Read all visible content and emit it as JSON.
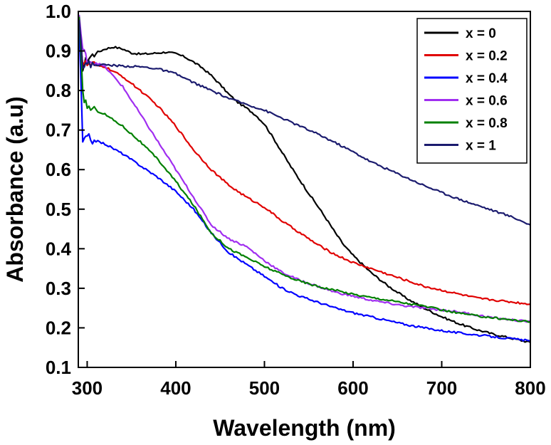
{
  "chart_data": {
    "type": "line",
    "title": "",
    "xlabel": "Wavelength (nm)",
    "ylabel": "Absorbance (a.u)",
    "xlim": [
      290,
      800
    ],
    "ylim": [
      0.1,
      1.0
    ],
    "xticks": [
      300,
      400,
      500,
      600,
      700,
      800
    ],
    "xtick_labels": [
      "300",
      "400",
      "500",
      "600",
      "700",
      "800"
    ],
    "yticks": [
      0.1,
      0.2,
      0.3,
      0.4,
      0.5,
      0.6,
      0.7,
      0.8,
      0.9,
      1.0
    ],
    "ytick_labels": [
      "0.1",
      "0.2",
      "0.3",
      "0.4",
      "0.5",
      "0.6",
      "0.7",
      "0.8",
      "0.9",
      "1.0"
    ],
    "grid": false,
    "legend_position": "top-right",
    "series": [
      {
        "name": "x = 0",
        "color": "#000000",
        "x": [
          291,
          295,
          300,
          310,
          320,
          330,
          340,
          350,
          360,
          370,
          380,
          390,
          400,
          410,
          420,
          430,
          440,
          450,
          460,
          470,
          480,
          490,
          500,
          510,
          520,
          530,
          540,
          550,
          560,
          570,
          580,
          590,
          600,
          620,
          640,
          660,
          680,
          700,
          720,
          740,
          760,
          780,
          800
        ],
        "y": [
          0.97,
          0.86,
          0.88,
          0.895,
          0.905,
          0.91,
          0.905,
          0.895,
          0.892,
          0.893,
          0.895,
          0.897,
          0.893,
          0.885,
          0.872,
          0.857,
          0.838,
          0.815,
          0.79,
          0.77,
          0.755,
          0.738,
          0.715,
          0.68,
          0.643,
          0.607,
          0.573,
          0.54,
          0.508,
          0.475,
          0.44,
          0.408,
          0.383,
          0.34,
          0.305,
          0.275,
          0.25,
          0.228,
          0.21,
          0.195,
          0.183,
          0.173,
          0.163
        ]
      },
      {
        "name": "x = 0.2",
        "color": "#e00000",
        "x": [
          291,
          295,
          300,
          320,
          340,
          360,
          380,
          400,
          420,
          440,
          460,
          480,
          500,
          520,
          540,
          560,
          580,
          600,
          620,
          640,
          660,
          680,
          700,
          720,
          740,
          760,
          780,
          800
        ],
        "y": [
          0.96,
          0.87,
          0.865,
          0.86,
          0.835,
          0.8,
          0.76,
          0.71,
          0.65,
          0.6,
          0.56,
          0.53,
          0.505,
          0.47,
          0.44,
          0.41,
          0.385,
          0.365,
          0.35,
          0.335,
          0.32,
          0.305,
          0.295,
          0.285,
          0.275,
          0.27,
          0.265,
          0.26
        ]
      },
      {
        "name": "x = 0.4",
        "color": "#0000ff",
        "x": [
          291,
          295,
          300,
          320,
          340,
          360,
          380,
          400,
          420,
          440,
          460,
          480,
          500,
          520,
          540,
          560,
          580,
          600,
          620,
          640,
          660,
          680,
          700,
          720,
          740,
          760,
          780,
          800
        ],
        "y": [
          0.96,
          0.67,
          0.68,
          0.665,
          0.64,
          0.61,
          0.58,
          0.545,
          0.5,
          0.44,
          0.39,
          0.36,
          0.33,
          0.3,
          0.28,
          0.265,
          0.25,
          0.238,
          0.228,
          0.218,
          0.208,
          0.2,
          0.193,
          0.187,
          0.182,
          0.177,
          0.172,
          0.167
        ]
      },
      {
        "name": "x = 0.6",
        "color": "#a02ef0",
        "x": [
          291,
          295,
          300,
          320,
          340,
          360,
          380,
          400,
          420,
          440,
          460,
          480,
          500,
          520,
          540,
          560,
          580,
          600,
          620,
          640,
          660,
          680,
          700,
          720,
          740,
          760,
          780,
          800
        ],
        "y": [
          0.99,
          0.9,
          0.88,
          0.86,
          0.81,
          0.74,
          0.67,
          0.6,
          0.53,
          0.46,
          0.425,
          0.405,
          0.37,
          0.34,
          0.32,
          0.305,
          0.29,
          0.28,
          0.27,
          0.262,
          0.255,
          0.25,
          0.245,
          0.24,
          0.232,
          0.225,
          0.22,
          0.215
        ]
      },
      {
        "name": "x = 0.8",
        "color": "#008000",
        "x": [
          291,
          295,
          300,
          320,
          340,
          360,
          380,
          400,
          420,
          440,
          460,
          480,
          500,
          520,
          540,
          560,
          580,
          600,
          620,
          640,
          660,
          680,
          700,
          720,
          740,
          760,
          780,
          800
        ],
        "y": [
          0.98,
          0.79,
          0.76,
          0.74,
          0.71,
          0.67,
          0.625,
          0.57,
          0.51,
          0.44,
          0.4,
          0.378,
          0.355,
          0.335,
          0.318,
          0.305,
          0.295,
          0.285,
          0.277,
          0.27,
          0.262,
          0.255,
          0.245,
          0.237,
          0.23,
          0.225,
          0.22,
          0.215
        ]
      },
      {
        "name": "x = 1",
        "color": "#1b1b6e",
        "x": [
          291,
          295,
          300,
          320,
          340,
          360,
          380,
          400,
          420,
          440,
          460,
          480,
          500,
          520,
          540,
          560,
          580,
          600,
          620,
          640,
          660,
          680,
          700,
          720,
          740,
          760,
          780,
          800
        ],
        "y": [
          0.99,
          0.865,
          0.865,
          0.865,
          0.862,
          0.86,
          0.855,
          0.842,
          0.82,
          0.8,
          0.78,
          0.765,
          0.75,
          0.73,
          0.71,
          0.69,
          0.668,
          0.645,
          0.62,
          0.6,
          0.58,
          0.56,
          0.542,
          0.525,
          0.51,
          0.495,
          0.48,
          0.46
        ]
      }
    ]
  }
}
